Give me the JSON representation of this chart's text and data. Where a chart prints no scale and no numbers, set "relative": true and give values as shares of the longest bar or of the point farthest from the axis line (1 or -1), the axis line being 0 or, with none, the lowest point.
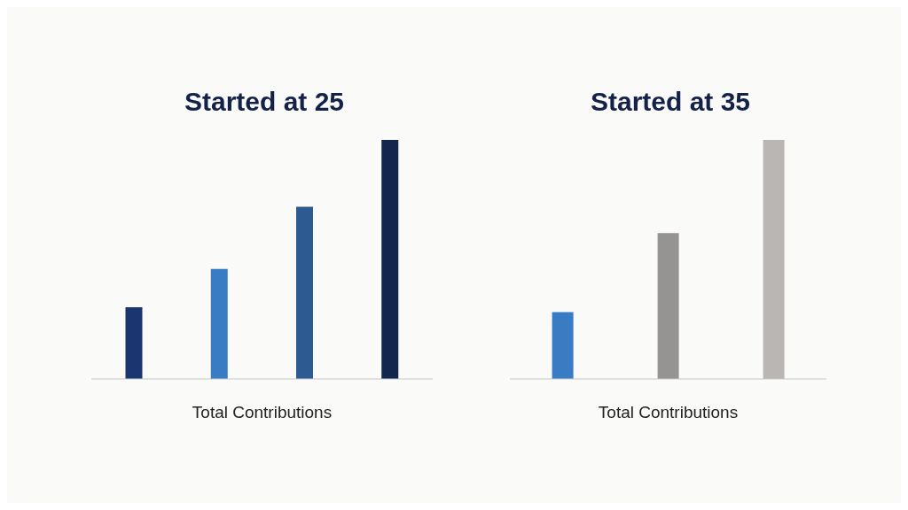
{
  "chart_data": [
    {
      "type": "bar",
      "title": "Started at 25",
      "xlabel": "Total Contributions",
      "categories": [
        null,
        null,
        null,
        null
      ],
      "relative": true,
      "values": [
        0.3,
        0.46,
        0.72,
        1
      ],
      "colors": [
        "#1a3570",
        "#3a7cc4",
        "#2e5a92",
        "#12264e"
      ]
    },
    {
      "type": "bar",
      "title": "Started at 35",
      "xlabel": "Total Contributions",
      "categories": [
        null,
        null,
        null
      ],
      "relative": true,
      "values": [
        0.28,
        0.61,
        1
      ],
      "colors": [
        "#3a7cc4",
        "#969493",
        "#b9b6b3"
      ]
    }
  ]
}
